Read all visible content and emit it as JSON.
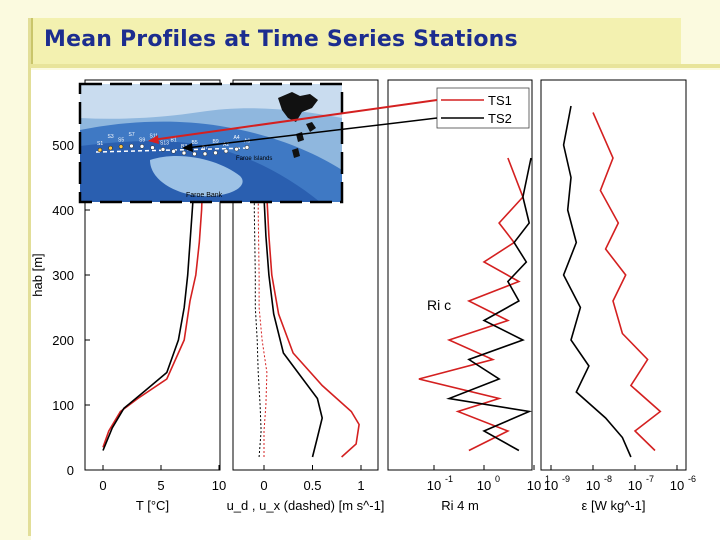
{
  "title": "Mean Profiles at Time Series Stations",
  "colors": {
    "ts1": "#d42020",
    "ts2": "#000000",
    "title": "#1c2d8f"
  },
  "legend": {
    "ts1": "TS1",
    "ts2": "TS2"
  },
  "chart_data": [
    {
      "type": "line",
      "xlabel": "T [°C]",
      "ylabel": "hab [m]",
      "xlim": [
        -1,
        10
      ],
      "ylim": [
        0,
        600
      ],
      "xticks": [
        "0",
        "5",
        "10"
      ],
      "yticks": [
        "0",
        "100",
        "200",
        "300",
        "400",
        "500"
      ],
      "series": [
        {
          "name": "TS1",
          "x": [
            0.0,
            0.5,
            1.5,
            3.0,
            5.5,
            7.0,
            7.5,
            8.0,
            8.3,
            8.5,
            8.6,
            8.7,
            8.8
          ],
          "y": [
            35,
            60,
            90,
            110,
            140,
            200,
            260,
            300,
            350,
            400,
            450,
            500,
            560
          ]
        },
        {
          "name": "TS2",
          "x": [
            0.0,
            0.8,
            1.8,
            3.5,
            5.5,
            6.5,
            7.0,
            7.3,
            7.5,
            7.7,
            7.9,
            8.0,
            8.1
          ],
          "y": [
            30,
            65,
            95,
            120,
            150,
            200,
            250,
            300,
            350,
            400,
            450,
            500,
            560
          ]
        }
      ]
    },
    {
      "type": "line",
      "xlabel": "u_d , u_x (dashed) [m s^-1]",
      "xlim": [
        -0.25,
        1.1
      ],
      "xticks": [
        "0",
        "0.5",
        "1"
      ],
      "series": [
        {
          "name": "TS1",
          "x": [
            0.8,
            0.95,
            0.98,
            0.9,
            0.6,
            0.3,
            0.15,
            0.08,
            0.05,
            0.03,
            0.02
          ],
          "y": [
            20,
            40,
            70,
            90,
            130,
            180,
            240,
            300,
            360,
            420,
            500
          ]
        },
        {
          "name": "TS2",
          "x": [
            0.5,
            0.55,
            0.6,
            0.55,
            0.4,
            0.2,
            0.1,
            0.05,
            0.02,
            0.0,
            -0.02
          ],
          "y": [
            20,
            50,
            80,
            110,
            140,
            180,
            240,
            300,
            360,
            420,
            500
          ]
        },
        {
          "name": "TS1",
          "dashed": true,
          "x": [
            0.0,
            0.0,
            0.02,
            0.03,
            -0.02,
            -0.05,
            -0.05,
            -0.06,
            -0.05
          ],
          "y": [
            20,
            60,
            100,
            150,
            200,
            250,
            300,
            400,
            500
          ]
        },
        {
          "name": "TS2",
          "dashed": true,
          "x": [
            -0.05,
            -0.03,
            -0.04,
            -0.06,
            -0.07,
            -0.09,
            -0.09,
            -0.1,
            -0.1
          ],
          "y": [
            20,
            60,
            100,
            150,
            200,
            250,
            300,
            400,
            500
          ]
        }
      ]
    },
    {
      "type": "line",
      "xlabel": "Ri 4 m",
      "xscale": "log",
      "xlim": [
        0.01,
        10
      ],
      "xticks": [
        "10^-1",
        "10^0",
        "10^1"
      ],
      "annotation": "Ri c",
      "series": [
        {
          "name": "TS1",
          "x": [
            0.5,
            3.0,
            0.3,
            2.0,
            0.05,
            1.5,
            0.2,
            3.0,
            0.5,
            5.0,
            1.0,
            4.0,
            2.0,
            6.0,
            3.0
          ],
          "y": [
            30,
            60,
            90,
            110,
            140,
            170,
            200,
            230,
            260,
            290,
            320,
            350,
            380,
            420,
            480
          ]
        },
        {
          "name": "TS2",
          "x": [
            5.0,
            1.0,
            8.0,
            0.2,
            2.0,
            0.5,
            6.0,
            1.0,
            5.0,
            3.0,
            7.0,
            4.0,
            8.0,
            6.0,
            9.0
          ],
          "y": [
            30,
            60,
            90,
            110,
            140,
            170,
            200,
            230,
            260,
            290,
            320,
            350,
            380,
            420,
            480
          ]
        }
      ]
    },
    {
      "type": "line",
      "xlabel": "ε [W kg^-1]",
      "xscale": "log",
      "xlim": [
        1e-09,
        1e-06
      ],
      "xticks": [
        "10^-9",
        "10^-8",
        "10^-7",
        "10^-6"
      ],
      "series": [
        {
          "name": "TS1",
          "x": [
            3e-07,
            1e-07,
            4e-07,
            8e-08,
            2e-07,
            5e-08,
            3e-08,
            6e-08,
            2e-08,
            4e-08,
            1.5e-08,
            3e-08,
            1e-08
          ],
          "y": [
            30,
            60,
            90,
            130,
            170,
            210,
            260,
            300,
            340,
            380,
            430,
            480,
            550
          ]
        },
        {
          "name": "TS2",
          "x": [
            8e-08,
            5e-08,
            2e-08,
            4e-09,
            8e-09,
            3e-09,
            5e-09,
            2e-09,
            4e-09,
            2.5e-09,
            3e-09,
            2e-09,
            3e-09
          ],
          "y": [
            20,
            50,
            80,
            120,
            160,
            200,
            250,
            300,
            350,
            400,
            450,
            500,
            560
          ]
        }
      ]
    }
  ],
  "map": {
    "labels": [
      "Faroe Bank",
      "Faroe Islands"
    ],
    "stations": [
      "S1",
      "S3",
      "S5",
      "S7",
      "S9",
      "S11",
      "S13",
      "B1",
      "B3",
      "B5",
      "B7",
      "B9",
      "A2",
      "A4",
      "A6"
    ]
  }
}
